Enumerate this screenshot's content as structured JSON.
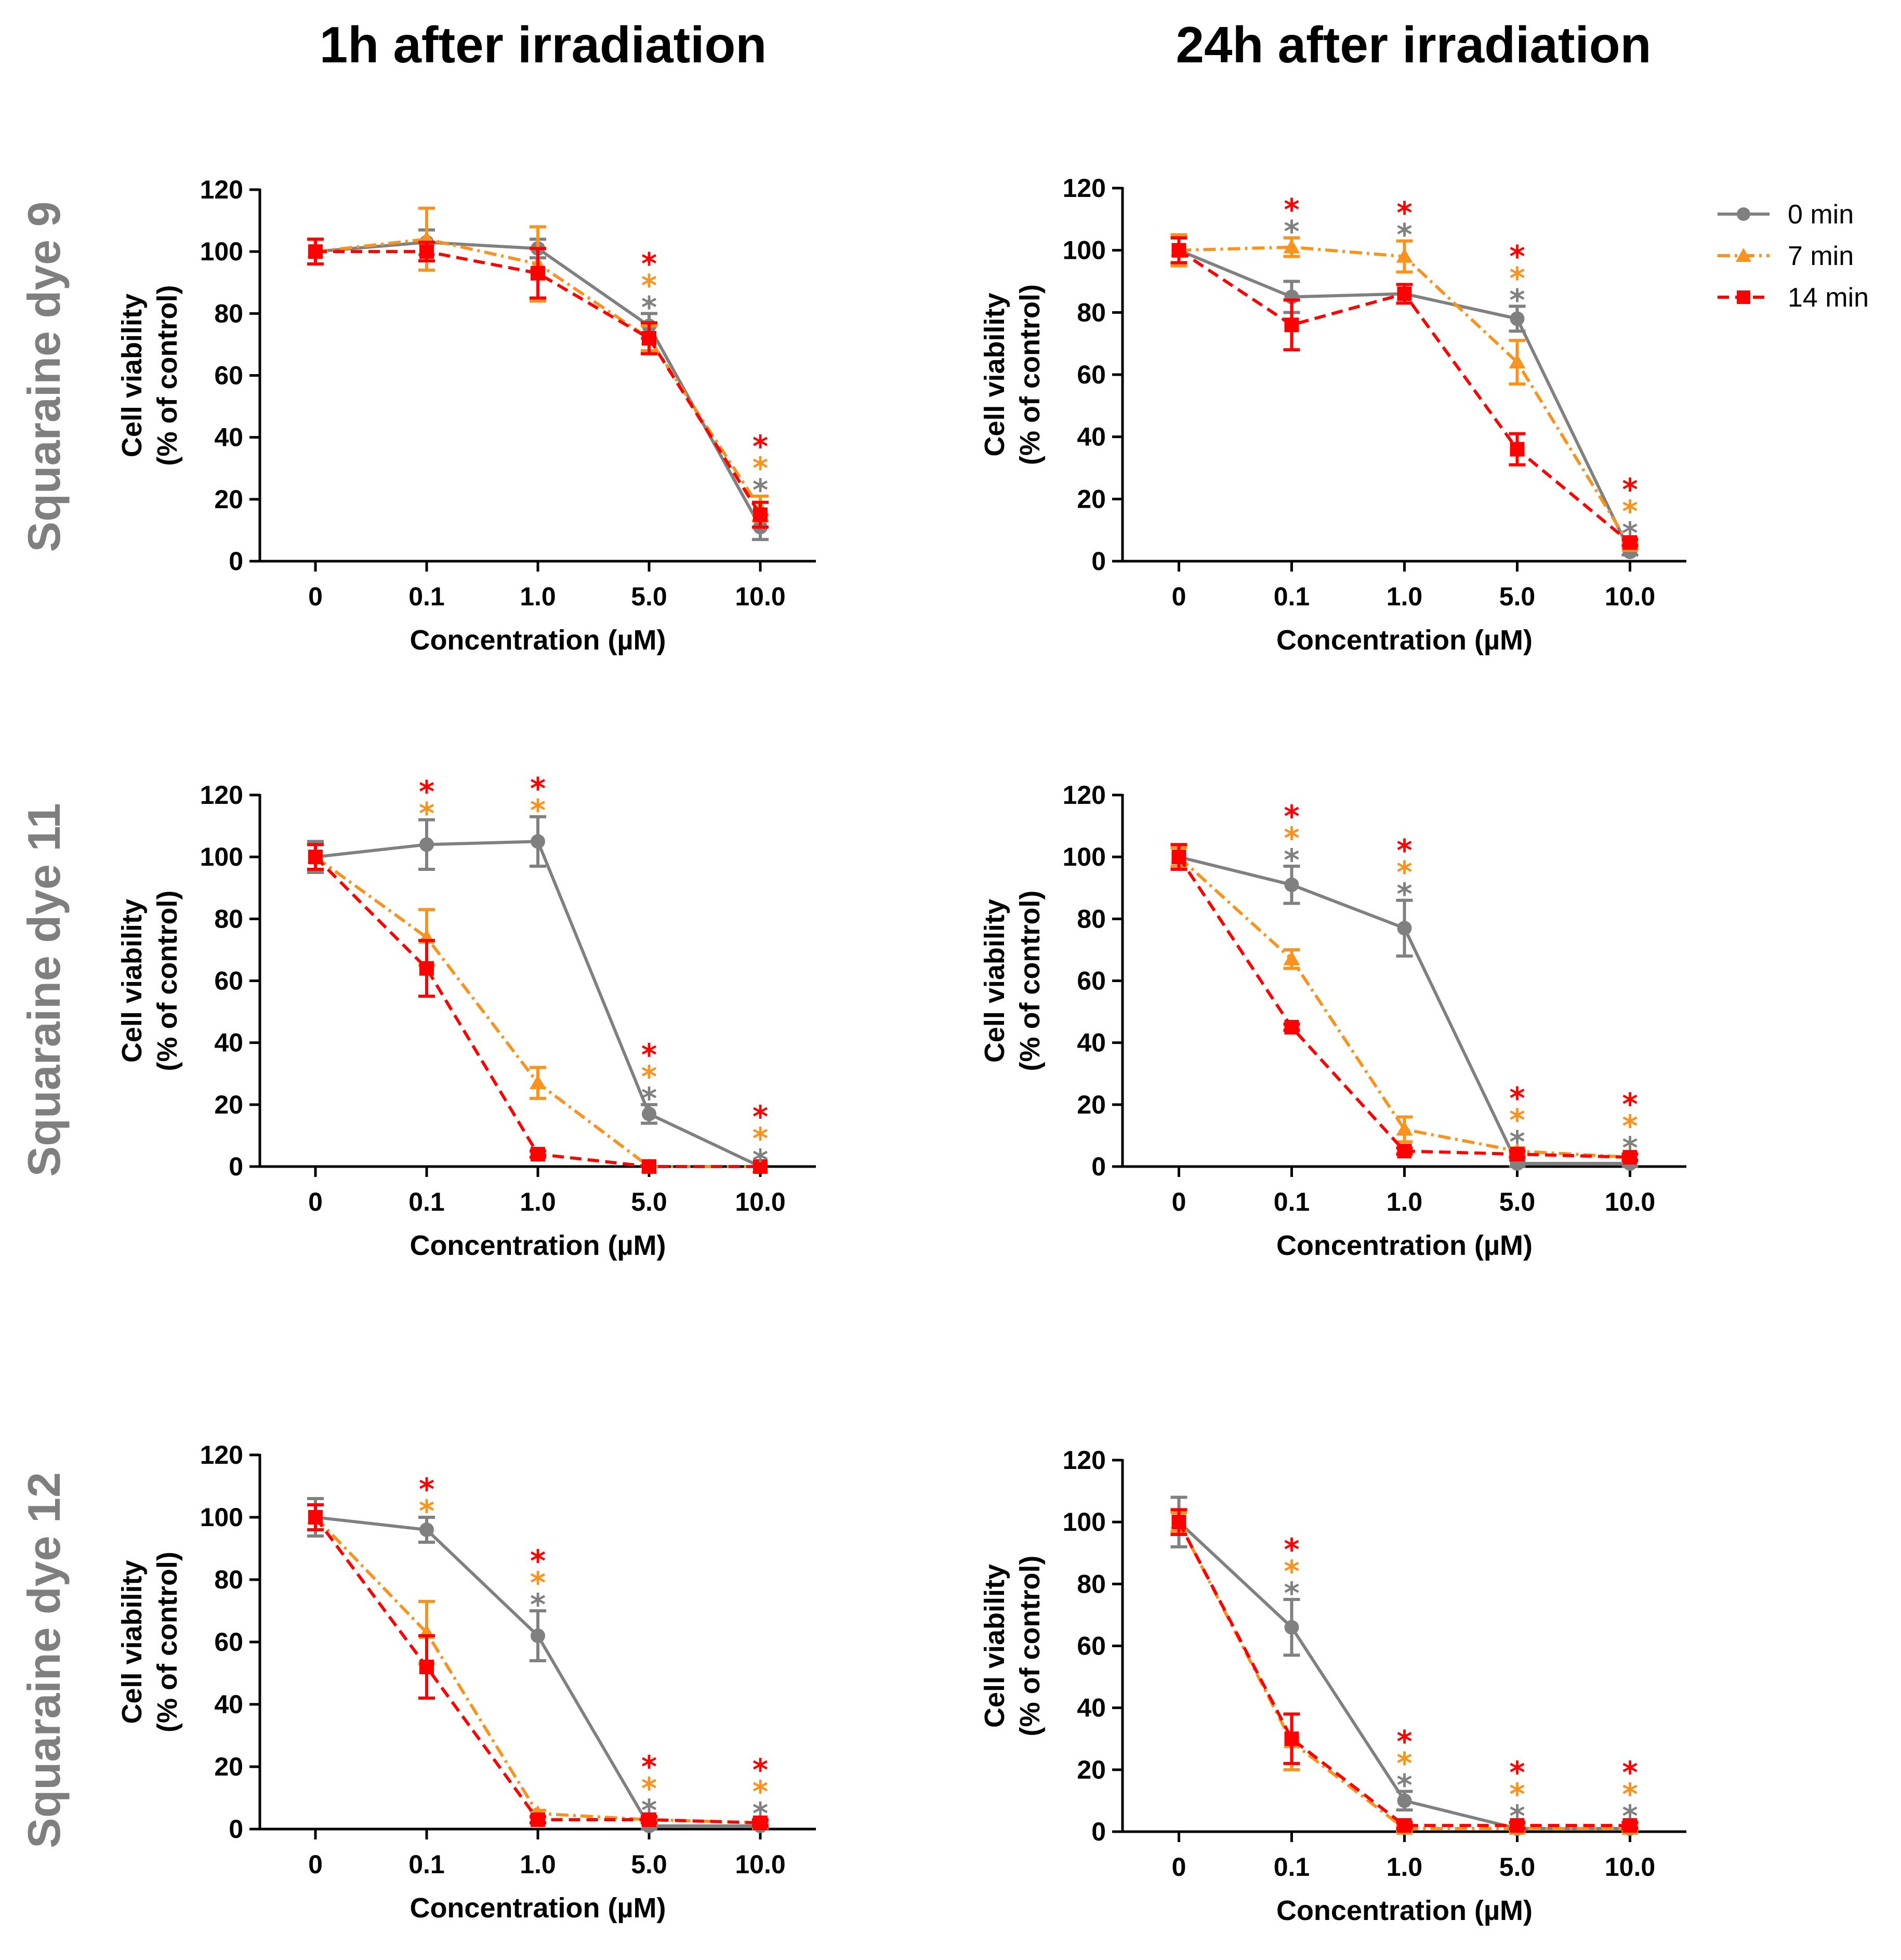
{
  "column_titles": [
    "1h after irradiation",
    "24h after irradiation"
  ],
  "row_titles": [
    "Squaraine dye 9",
    "Squaraine dye 11",
    "Squaraine dye 12"
  ],
  "legend": [
    {
      "label": "0 min",
      "color": "#808080",
      "marker": "circle",
      "dash": "solid"
    },
    {
      "label": "7 min",
      "color": "#F7931E",
      "marker": "triangle",
      "dash": "dashdot"
    },
    {
      "label": "14 min",
      "color": "#FF0000",
      "marker": "square",
      "dash": "dashed"
    }
  ],
  "chart_data": [
    {
      "type": "line",
      "title": "1h after irradiation — Squaraine dye 9",
      "categories": [
        "0",
        "0.1",
        "1.0",
        "5.0",
        "10.0"
      ],
      "xlabel": "Concentration (µM)",
      "ylabel": "Cell viability",
      "ylabel2": "(% of control)",
      "ylim": [
        0,
        120
      ],
      "yticks": [
        "0",
        "20",
        "40",
        "60",
        "80",
        "100",
        "120"
      ],
      "series": [
        {
          "name": "0 min",
          "values": [
            100,
            103,
            101,
            76,
            11
          ],
          "errors": [
            4,
            4,
            3,
            4,
            4
          ]
        },
        {
          "name": "7 min",
          "values": [
            100,
            104,
            96,
            72,
            17
          ],
          "errors": [
            4,
            10,
            12,
            4,
            4
          ]
        },
        {
          "name": "14 min",
          "values": [
            100,
            100,
            93,
            72,
            15
          ],
          "errors": [
            4,
            3,
            8,
            5,
            4
          ]
        }
      ],
      "significance": [
        [],
        [],
        [],
        [
          "14 min",
          "7 min",
          "0 min"
        ],
        [
          "14 min",
          "7 min",
          "0 min"
        ]
      ]
    },
    {
      "type": "line",
      "title": "24h after irradiation — Squaraine dye 9",
      "categories": [
        "0",
        "0.1",
        "1.0",
        "5.0",
        "10.0"
      ],
      "xlabel": "Concentration (µM)",
      "ylabel": "Cell viability",
      "ylabel2": "(% of control)",
      "ylim": [
        0,
        120
      ],
      "yticks": [
        "0",
        "20",
        "40",
        "60",
        "80",
        "100",
        "120"
      ],
      "series": [
        {
          "name": "0 min",
          "values": [
            100,
            85,
            86,
            78,
            3
          ],
          "errors": [
            4,
            5,
            3,
            4,
            1
          ]
        },
        {
          "name": "7 min",
          "values": [
            100,
            101,
            98,
            64,
            5
          ],
          "errors": [
            5,
            3,
            5,
            7,
            1
          ]
        },
        {
          "name": "14 min",
          "values": [
            100,
            76,
            86,
            36,
            6
          ],
          "errors": [
            4,
            8,
            3,
            5,
            1
          ]
        }
      ],
      "significance": [
        [],
        [
          "14 min",
          "0 min"
        ],
        [
          "14 min",
          "0 min"
        ],
        [
          "14 min",
          "7 min",
          "0 min"
        ],
        [
          "14 min",
          "7 min",
          "0 min"
        ]
      ]
    },
    {
      "type": "line",
      "title": "1h after irradiation — Squaraine dye 11",
      "categories": [
        "0",
        "0.1",
        "1.0",
        "5.0",
        "10.0"
      ],
      "xlabel": "Concentration (µM)",
      "ylabel": "Cell viability",
      "ylabel2": "(% of control)",
      "ylim": [
        0,
        120
      ],
      "yticks": [
        "0",
        "20",
        "40",
        "60",
        "80",
        "100",
        "120"
      ],
      "series": [
        {
          "name": "0 min",
          "values": [
            100,
            104,
            105,
            17,
            0
          ],
          "errors": [
            5,
            8,
            8,
            3,
            0
          ]
        },
        {
          "name": "7 min",
          "values": [
            100,
            74,
            27,
            0,
            0
          ],
          "errors": [
            4,
            9,
            5,
            0,
            0
          ]
        },
        {
          "name": "14 min",
          "values": [
            100,
            64,
            4,
            0,
            0
          ],
          "errors": [
            4,
            9,
            1,
            0,
            0
          ]
        }
      ],
      "significance": [
        [],
        [
          "14 min",
          "7 min"
        ],
        [
          "14 min",
          "7 min"
        ],
        [
          "14 min",
          "7 min",
          "0 min"
        ],
        [
          "14 min",
          "7 min",
          "0 min"
        ]
      ]
    },
    {
      "type": "line",
      "title": "24h after irradiation — Squaraine dye 11",
      "categories": [
        "0",
        "0.1",
        "1.0",
        "5.0",
        "10.0"
      ],
      "xlabel": "Concentration (µM)",
      "ylabel": "Cell viability",
      "ylabel2": "(% of control)",
      "ylim": [
        0,
        120
      ],
      "yticks": [
        "0",
        "20",
        "40",
        "60",
        "80",
        "100",
        "120"
      ],
      "series": [
        {
          "name": "0 min",
          "values": [
            100,
            91,
            77,
            1,
            1
          ],
          "errors": [
            3,
            6,
            9,
            1,
            1
          ]
        },
        {
          "name": "7 min",
          "values": [
            100,
            67,
            12,
            5,
            3
          ],
          "errors": [
            3,
            3,
            4,
            1,
            1
          ]
        },
        {
          "name": "14 min",
          "values": [
            100,
            45,
            5,
            4,
            3
          ],
          "errors": [
            4,
            1,
            1,
            1,
            1
          ]
        }
      ],
      "significance": [
        [],
        [
          "14 min",
          "7 min",
          "0 min"
        ],
        [
          "14 min",
          "7 min",
          "0 min"
        ],
        [
          "14 min",
          "7 min",
          "0 min"
        ],
        [
          "14 min",
          "7 min",
          "0 min"
        ]
      ]
    },
    {
      "type": "line",
      "title": "1h after irradiation — Squaraine dye 12",
      "categories": [
        "0",
        "0.1",
        "1.0",
        "5.0",
        "10.0"
      ],
      "xlabel": "Concentration (µM)",
      "ylabel": "Cell viability",
      "ylabel2": "(% of control)",
      "ylim": [
        0,
        120
      ],
      "yticks": [
        "0",
        "20",
        "40",
        "60",
        "80",
        "100",
        "120"
      ],
      "series": [
        {
          "name": "0 min",
          "values": [
            100,
            96,
            62,
            1,
            1
          ],
          "errors": [
            6,
            4,
            8,
            1,
            1
          ]
        },
        {
          "name": "7 min",
          "values": [
            100,
            63,
            5,
            3,
            2
          ],
          "errors": [
            4,
            10,
            1,
            1,
            1
          ]
        },
        {
          "name": "14 min",
          "values": [
            100,
            52,
            3,
            3,
            2
          ],
          "errors": [
            4,
            10,
            1,
            1,
            1
          ]
        }
      ],
      "significance": [
        [],
        [
          "14 min",
          "7 min"
        ],
        [
          "14 min",
          "7 min",
          "0 min"
        ],
        [
          "14 min",
          "7 min",
          "0 min"
        ],
        [
          "14 min",
          "7 min",
          "0 min"
        ]
      ]
    },
    {
      "type": "line",
      "title": "24h after irradiation — Squaraine dye 12",
      "categories": [
        "0",
        "0.1",
        "1.0",
        "5.0",
        "10.0"
      ],
      "xlabel": "Concentration (µM)",
      "ylabel": "Cell viability",
      "ylabel2": "(% of control)",
      "ylim": [
        0,
        120
      ],
      "yticks": [
        "0",
        "20",
        "40",
        "60",
        "80",
        "100",
        "120"
      ],
      "series": [
        {
          "name": "0 min",
          "values": [
            100,
            66,
            10,
            1,
            1
          ],
          "errors": [
            8,
            9,
            3,
            1,
            1
          ]
        },
        {
          "name": "7 min",
          "values": [
            100,
            29,
            1,
            1,
            1
          ],
          "errors": [
            3,
            9,
            1,
            1,
            1
          ]
        },
        {
          "name": "14 min",
          "values": [
            100,
            30,
            2,
            2,
            2
          ],
          "errors": [
            4,
            8,
            1,
            1,
            1
          ]
        }
      ],
      "significance": [
        [],
        [
          "14 min",
          "7 min",
          "0 min"
        ],
        [
          "14 min",
          "7 min",
          "0 min"
        ],
        [
          "14 min",
          "7 min",
          "0 min"
        ],
        [
          "14 min",
          "7 min",
          "0 min"
        ]
      ]
    }
  ]
}
